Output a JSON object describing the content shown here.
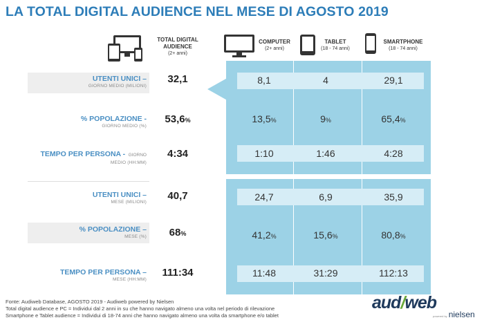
{
  "title": "LA TOTAL DIGITAL AUDIENCE NEL MESE DI AGOSTO 2019",
  "headers": {
    "total": {
      "line1": "TOTAL DIGITAL",
      "line2": "AUDIENCE",
      "line3": "(2+ anni)"
    },
    "computer": {
      "line1": "COMPUTER",
      "line2": "(2+ anni)"
    },
    "tablet": {
      "line1": "TABLET",
      "line2": "(18 - 74 anni)"
    },
    "smartphone": {
      "line1": "SMARTPHONE",
      "line2": "(18 - 74 anni)"
    }
  },
  "rows": [
    {
      "label": "UTENTI UNICI –",
      "sub": "GIORNO MEDIO (MILIONI)",
      "total": "32,1",
      "computer": "8,1",
      "tablet": "4",
      "smartphone": "29,1"
    },
    {
      "label": "% POPOLAZIONE -",
      "sub": "GIORNO MEDIO (%)",
      "total": "53,6",
      "computer": "13,5",
      "tablet": "9",
      "smartphone": "65,4"
    },
    {
      "label": "TEMPO PER PERSONA -",
      "label_tail": "GIORNO",
      "sub": "MEDIO (HH:MM)",
      "total": "4:34",
      "computer": "1:10",
      "tablet": "1:46",
      "smartphone": "4:28"
    },
    {
      "label": "UTENTI UNICI –",
      "sub": "MESE (MILIONI)",
      "total": "40,7",
      "computer": "24,7",
      "tablet": "6,9",
      "smartphone": "35,9"
    },
    {
      "label": "% POPOLAZIONE –",
      "sub": "MESE (%)",
      "total": "68",
      "computer": "41,2",
      "tablet": "15,6",
      "smartphone": "80,8"
    },
    {
      "label": "TEMPO PER PERSONA –",
      "sub": "MESE (HH:MM)",
      "total": "111:34",
      "computer": "11:48",
      "tablet": "31:29",
      "smartphone": "112:13"
    }
  ],
  "percent_sign": "%",
  "footer": {
    "line1": "Fonte: Audiweb Database, AGOSTO 2019 - Audiweb powered by Nielsen",
    "line2": "Total digital audience e PC = Individui dal 2 anni in su che hanno navigato almeno una volta nel periodo di rilevazione",
    "line3": "Smartphone e Tablet audience = Individui di 18-74 anni che hanno navigato almeno una volta da smartphone e/o tablet"
  },
  "logo": {
    "part1": "aud",
    "slash": "/",
    "part2": "web",
    "powered": "powered by",
    "brand": "nielsen"
  },
  "icons": [
    "devices-icon",
    "computer-icon",
    "tablet-icon",
    "smartphone-icon"
  ],
  "colors": {
    "title": "#2d7db8",
    "label": "#4a8fc3",
    "panel": "#9cd2e6",
    "cell": "#d6edf6"
  }
}
